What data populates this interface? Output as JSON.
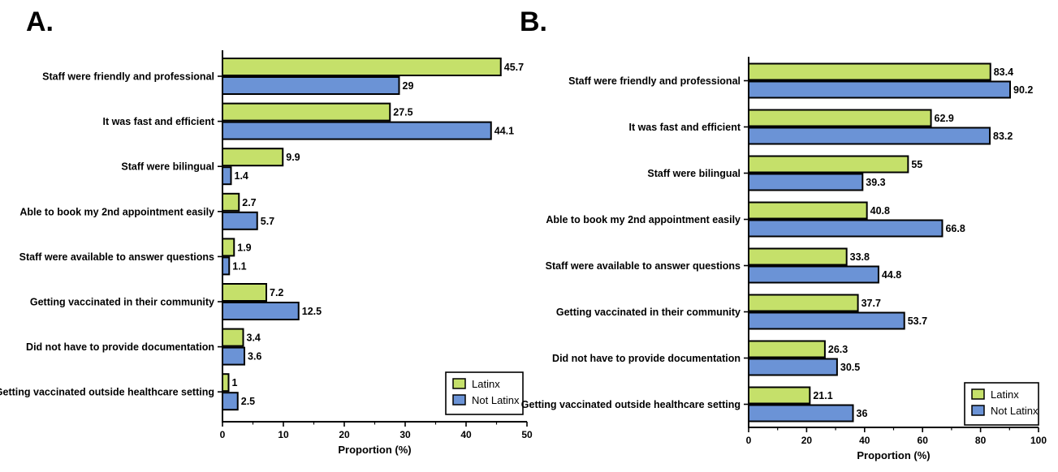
{
  "chart_data": [
    {
      "panel": "A.",
      "type": "bar",
      "orientation": "horizontal",
      "categories": [
        "Staff were friendly and professional",
        "It was fast and efficient",
        "Staff were bilingual",
        "Able to book my 2nd appointment easily",
        "Staff were available to answer questions",
        "Getting vaccinated in their community",
        "Did not have to provide documentation",
        "Getting vaccinated outside healthcare setting"
      ],
      "series": [
        {
          "name": "Latinx",
          "color": "#c5e06a",
          "values": [
            45.7,
            27.5,
            9.9,
            2.7,
            1.9,
            7.2,
            3.4,
            1.0
          ]
        },
        {
          "name": "Not Latinx",
          "color": "#6b93d6",
          "values": [
            29.0,
            44.1,
            1.4,
            5.7,
            1.1,
            12.5,
            3.6,
            2.5
          ]
        }
      ],
      "xlabel": "Proportion (%)",
      "xlim": [
        0,
        50
      ],
      "xticks": [
        0,
        10,
        20,
        30,
        40,
        50
      ],
      "grid": false,
      "legend_position": "bottom-right"
    },
    {
      "panel": "B.",
      "type": "bar",
      "orientation": "horizontal",
      "categories": [
        "Staff were friendly and professional",
        "It was fast and efficient",
        "Staff were bilingual",
        "Able to book my 2nd appointment easily",
        "Staff were available to answer questions",
        "Getting vaccinated in their community",
        "Did not have to provide documentation",
        "Getting vaccinated outside healthcare setting"
      ],
      "series": [
        {
          "name": "Latinx",
          "color": "#c5e06a",
          "values": [
            83.4,
            62.9,
            55.0,
            40.8,
            33.8,
            37.7,
            26.3,
            21.1
          ]
        },
        {
          "name": "Not Latinx",
          "color": "#6b93d6",
          "values": [
            90.2,
            83.2,
            39.3,
            66.8,
            44.8,
            53.7,
            30.5,
            36.0
          ]
        }
      ],
      "xlabel": "Proportion (%)",
      "xlim": [
        0,
        100
      ],
      "xticks": [
        0,
        20,
        40,
        60,
        80,
        100
      ],
      "grid": false,
      "legend_position": "bottom-right"
    }
  ]
}
